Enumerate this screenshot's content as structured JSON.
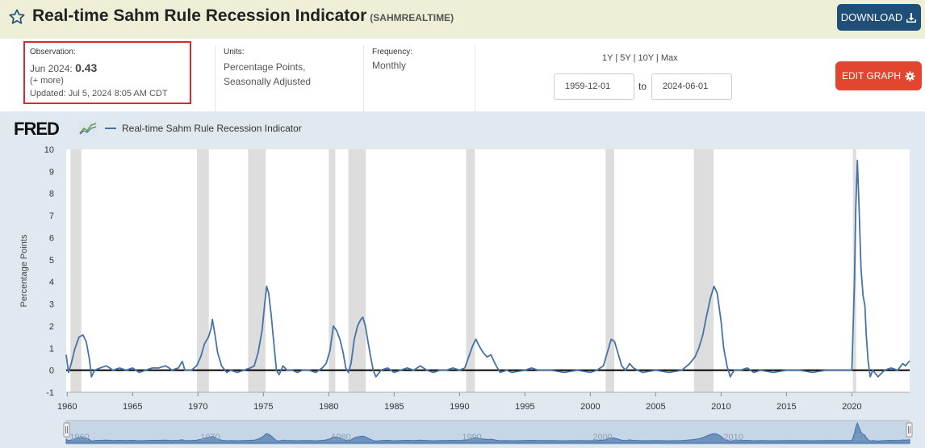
{
  "header": {
    "title": "Real-time Sahm Rule Recession Indicator",
    "series_id": "(SAHMREALTIME)",
    "download_label": "DOWNLOAD"
  },
  "observation": {
    "label": "Observation:",
    "period": "Jun 2024:",
    "value": "0.43",
    "more": "(+ more)",
    "updated": "Updated: Jul 5, 2024 8:05 AM CDT"
  },
  "units": {
    "label": "Units:",
    "line1": "Percentage Points,",
    "line2": "Seasonally Adjusted"
  },
  "frequency": {
    "label": "Frequency:",
    "value": "Monthly"
  },
  "ranges": [
    "1Y",
    "5Y",
    "10Y",
    "Max"
  ],
  "date_range": {
    "start": "1959-12-01",
    "to": "to",
    "end": "2024-06-01"
  },
  "edit_label": "EDIT GRAPH",
  "logo": "FRED",
  "legend": "Real-time Sahm Rule Recession Indicator",
  "colors": {
    "series": "#4572a7",
    "recession": "#dddddd",
    "header_bg": "#efefd8",
    "download": "#1f4e79",
    "edit": "#e2462f",
    "highlight": "#e0272b"
  },
  "chart_data": {
    "type": "line",
    "ylabel": "Percentage Points",
    "ylim": [
      -1,
      10
    ],
    "yticks": [
      -1,
      0,
      1,
      2,
      3,
      4,
      5,
      6,
      7,
      8,
      9,
      10
    ],
    "xlim": [
      1959.92,
      2024.42
    ],
    "xticks": [
      1960,
      1965,
      1970,
      1975,
      1980,
      1985,
      1990,
      1995,
      2000,
      2005,
      2010,
      2015,
      2020
    ],
    "navigator_ticks": [
      "1960",
      "1970",
      "1980",
      "1990",
      "2000",
      "2010",
      "20"
    ],
    "zero_line": true,
    "recessions": [
      [
        1960.25,
        1961.08
      ],
      [
        1969.92,
        1970.83
      ],
      [
        1973.83,
        1975.17
      ],
      [
        1980.0,
        1980.5
      ],
      [
        1981.5,
        1982.83
      ],
      [
        1990.5,
        1991.17
      ],
      [
        2001.17,
        2001.83
      ],
      [
        2007.92,
        2009.42
      ],
      [
        2020.08,
        2020.33
      ]
    ],
    "series": [
      {
        "name": "Real-time Sahm Rule Recession Indicator",
        "points": [
          [
            1959.92,
            0.7
          ],
          [
            1960.1,
            -0.1
          ],
          [
            1960.3,
            0.3
          ],
          [
            1960.6,
            1.0
          ],
          [
            1960.9,
            1.5
          ],
          [
            1961.2,
            1.6
          ],
          [
            1961.45,
            1.3
          ],
          [
            1961.7,
            0.5
          ],
          [
            1961.85,
            -0.3
          ],
          [
            1962.1,
            0.0
          ],
          [
            1962.5,
            0.1
          ],
          [
            1963.0,
            0.2
          ],
          [
            1963.5,
            0.0
          ],
          [
            1964.0,
            0.1
          ],
          [
            1964.5,
            0.0
          ],
          [
            1965.0,
            0.1
          ],
          [
            1965.5,
            -0.1
          ],
          [
            1966.0,
            0.0
          ],
          [
            1966.5,
            0.1
          ],
          [
            1967.0,
            0.1
          ],
          [
            1967.5,
            0.2
          ],
          [
            1967.8,
            0.1
          ],
          [
            1968.0,
            0.0
          ],
          [
            1968.5,
            0.1
          ],
          [
            1968.8,
            0.4
          ],
          [
            1969.0,
            0.0
          ],
          [
            1969.5,
            0.0
          ],
          [
            1969.9,
            0.2
          ],
          [
            1970.2,
            0.6
          ],
          [
            1970.5,
            1.2
          ],
          [
            1970.8,
            1.5
          ],
          [
            1971.0,
            1.9
          ],
          [
            1971.1,
            2.3
          ],
          [
            1971.3,
            1.6
          ],
          [
            1971.5,
            0.8
          ],
          [
            1971.8,
            0.2
          ],
          [
            1972.2,
            -0.1
          ],
          [
            1972.5,
            0.0
          ],
          [
            1973.0,
            -0.1
          ],
          [
            1973.5,
            0.0
          ],
          [
            1974.0,
            0.1
          ],
          [
            1974.3,
            0.2
          ],
          [
            1974.6,
            0.8
          ],
          [
            1974.9,
            1.8
          ],
          [
            1975.1,
            3.0
          ],
          [
            1975.25,
            3.8
          ],
          [
            1975.4,
            3.5
          ],
          [
            1975.6,
            2.5
          ],
          [
            1975.8,
            1.2
          ],
          [
            1976.0,
            0.0
          ],
          [
            1976.2,
            -0.2
          ],
          [
            1976.5,
            0.2
          ],
          [
            1976.8,
            0.0
          ],
          [
            1977.2,
            0.0
          ],
          [
            1977.6,
            -0.1
          ],
          [
            1978.0,
            0.0
          ],
          [
            1978.5,
            0.0
          ],
          [
            1979.0,
            -0.1
          ],
          [
            1979.5,
            0.1
          ],
          [
            1979.8,
            0.3
          ],
          [
            1980.1,
            0.9
          ],
          [
            1980.35,
            2.0
          ],
          [
            1980.6,
            1.8
          ],
          [
            1980.85,
            1.4
          ],
          [
            1981.1,
            0.8
          ],
          [
            1981.3,
            0.1
          ],
          [
            1981.5,
            -0.1
          ],
          [
            1981.7,
            0.3
          ],
          [
            1981.95,
            1.4
          ],
          [
            1982.2,
            2.0
          ],
          [
            1982.45,
            2.3
          ],
          [
            1982.6,
            2.4
          ],
          [
            1982.8,
            2.0
          ],
          [
            1983.0,
            1.3
          ],
          [
            1983.2,
            0.6
          ],
          [
            1983.4,
            0.0
          ],
          [
            1983.6,
            -0.3
          ],
          [
            1984.0,
            0.0
          ],
          [
            1984.5,
            0.1
          ],
          [
            1985.0,
            -0.1
          ],
          [
            1985.5,
            0.0
          ],
          [
            1986.0,
            0.1
          ],
          [
            1986.5,
            0.0
          ],
          [
            1987.0,
            0.2
          ],
          [
            1987.5,
            0.0
          ],
          [
            1988.0,
            -0.1
          ],
          [
            1988.5,
            0.0
          ],
          [
            1989.0,
            0.0
          ],
          [
            1989.5,
            0.1
          ],
          [
            1990.0,
            0.0
          ],
          [
            1990.4,
            0.1
          ],
          [
            1990.7,
            0.6
          ],
          [
            1991.0,
            1.1
          ],
          [
            1991.25,
            1.4
          ],
          [
            1991.5,
            1.1
          ],
          [
            1991.8,
            0.8
          ],
          [
            1992.1,
            0.6
          ],
          [
            1992.4,
            0.7
          ],
          [
            1992.8,
            0.2
          ],
          [
            1993.1,
            -0.1
          ],
          [
            1993.6,
            0.0
          ],
          [
            1994.0,
            -0.1
          ],
          [
            1995.0,
            0.0
          ],
          [
            1995.5,
            0.1
          ],
          [
            1996.0,
            0.0
          ],
          [
            1997.0,
            0.0
          ],
          [
            1998.0,
            -0.1
          ],
          [
            1999.0,
            0.0
          ],
          [
            2000.0,
            -0.1
          ],
          [
            2000.5,
            0.0
          ],
          [
            2001.0,
            0.2
          ],
          [
            2001.3,
            0.8
          ],
          [
            2001.6,
            1.4
          ],
          [
            2001.85,
            1.3
          ],
          [
            2002.1,
            0.8
          ],
          [
            2002.4,
            0.2
          ],
          [
            2002.7,
            0.0
          ],
          [
            2003.0,
            0.3
          ],
          [
            2003.3,
            0.1
          ],
          [
            2003.6,
            0.0
          ],
          [
            2004.0,
            -0.1
          ],
          [
            2005.0,
            0.0
          ],
          [
            2006.0,
            -0.1
          ],
          [
            2007.0,
            0.0
          ],
          [
            2007.6,
            0.3
          ],
          [
            2008.0,
            0.6
          ],
          [
            2008.3,
            1.0
          ],
          [
            2008.6,
            1.6
          ],
          [
            2008.9,
            2.5
          ],
          [
            2009.2,
            3.3
          ],
          [
            2009.45,
            3.8
          ],
          [
            2009.7,
            3.5
          ],
          [
            2010.0,
            2.2
          ],
          [
            2010.2,
            1.0
          ],
          [
            2010.45,
            0.2
          ],
          [
            2010.7,
            -0.3
          ],
          [
            2011.0,
            0.0
          ],
          [
            2011.5,
            0.0
          ],
          [
            2012.0,
            0.1
          ],
          [
            2012.5,
            -0.1
          ],
          [
            2013.0,
            0.0
          ],
          [
            2014.0,
            -0.1
          ],
          [
            2015.0,
            0.0
          ],
          [
            2016.0,
            0.0
          ],
          [
            2017.0,
            -0.1
          ],
          [
            2018.0,
            0.0
          ],
          [
            2019.0,
            0.0
          ],
          [
            2020.0,
            0.0
          ],
          [
            2020.2,
            4.0
          ],
          [
            2020.3,
            7.3
          ],
          [
            2020.42,
            9.5
          ],
          [
            2020.55,
            7.4
          ],
          [
            2020.7,
            4.6
          ],
          [
            2020.85,
            3.4
          ],
          [
            2021.0,
            2.9
          ],
          [
            2021.1,
            1.6
          ],
          [
            2021.25,
            0.4
          ],
          [
            2021.4,
            -0.3
          ],
          [
            2021.6,
            0.0
          ],
          [
            2022.0,
            -0.3
          ],
          [
            2022.5,
            0.0
          ],
          [
            2023.0,
            0.1
          ],
          [
            2023.5,
            0.0
          ],
          [
            2023.9,
            0.3
          ],
          [
            2024.1,
            0.2
          ],
          [
            2024.42,
            0.43
          ]
        ]
      }
    ]
  }
}
